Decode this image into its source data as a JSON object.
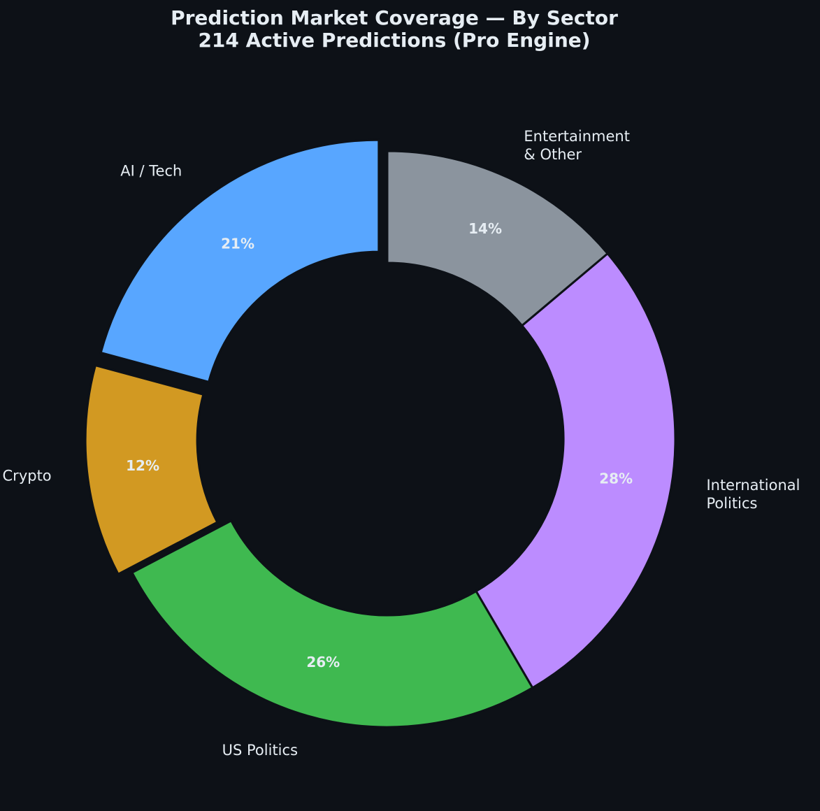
{
  "chart_data": {
    "type": "pie",
    "variant": "donut",
    "title": "Prediction Market Coverage — By Sector",
    "subtitle": "214 Active Predictions (Pro Engine)",
    "start_angle_deg": 90,
    "direction": "counterclockwise",
    "slices": [
      {
        "label": "AI / Tech",
        "label_lines": [
          "AI / Tech"
        ],
        "value": 21,
        "value_label": "21%",
        "color": "#58a6ff",
        "exploded": true
      },
      {
        "label": "Crypto",
        "label_lines": [
          "Crypto"
        ],
        "value": 12,
        "value_label": "12%",
        "color": "#d29922",
        "exploded": true
      },
      {
        "label": "US Politics",
        "label_lines": [
          "US Politics"
        ],
        "value": 26,
        "value_label": "26%",
        "color": "#3fb950",
        "exploded": false
      },
      {
        "label": "International Politics",
        "label_lines": [
          "International",
          "Politics"
        ],
        "value": 28,
        "value_label": "28%",
        "color": "#bc8cff",
        "exploded": false
      },
      {
        "label": "Entertainment & Other",
        "label_lines": [
          "Entertainment",
          "& Other"
        ],
        "value": 14,
        "value_label": "14%",
        "color": "#8b949e",
        "exploded": false
      }
    ]
  },
  "colors": {
    "background": "#0d1117",
    "text": "#e6edf3"
  }
}
